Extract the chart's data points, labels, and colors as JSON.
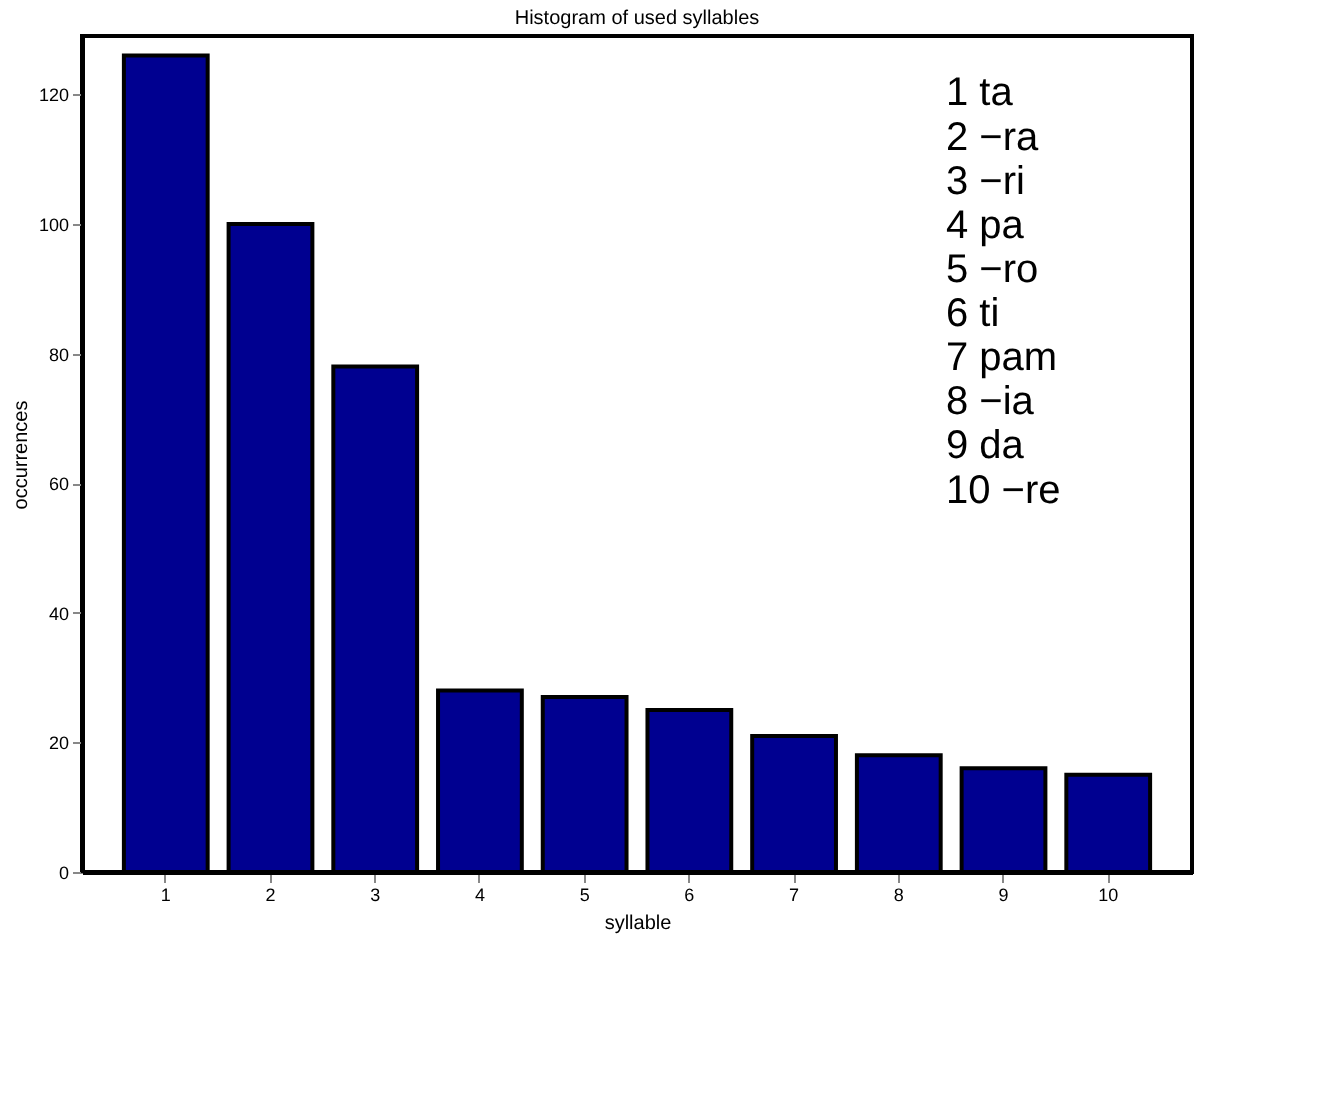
{
  "chart_data": {
    "type": "bar",
    "title": "Histogram of used syllables",
    "xlabel": "syllable",
    "ylabel": "occurrences",
    "categories": [
      "1",
      "2",
      "3",
      "4",
      "5",
      "6",
      "7",
      "8",
      "9",
      "10"
    ],
    "values": [
      126,
      100,
      78,
      28,
      27,
      25,
      21,
      18,
      16,
      15
    ],
    "color": "#000090",
    "ylim": [
      0,
      129
    ],
    "yticks": [
      0,
      20,
      40,
      60,
      80,
      100,
      120
    ],
    "grid": false,
    "annotations": [
      "1   ta",
      "2  −ra",
      "3  −ri",
      "4   pa",
      "5  −ro",
      "6   ti",
      "7   pam",
      "8  −ia",
      "9   da",
      "10 −re"
    ]
  }
}
